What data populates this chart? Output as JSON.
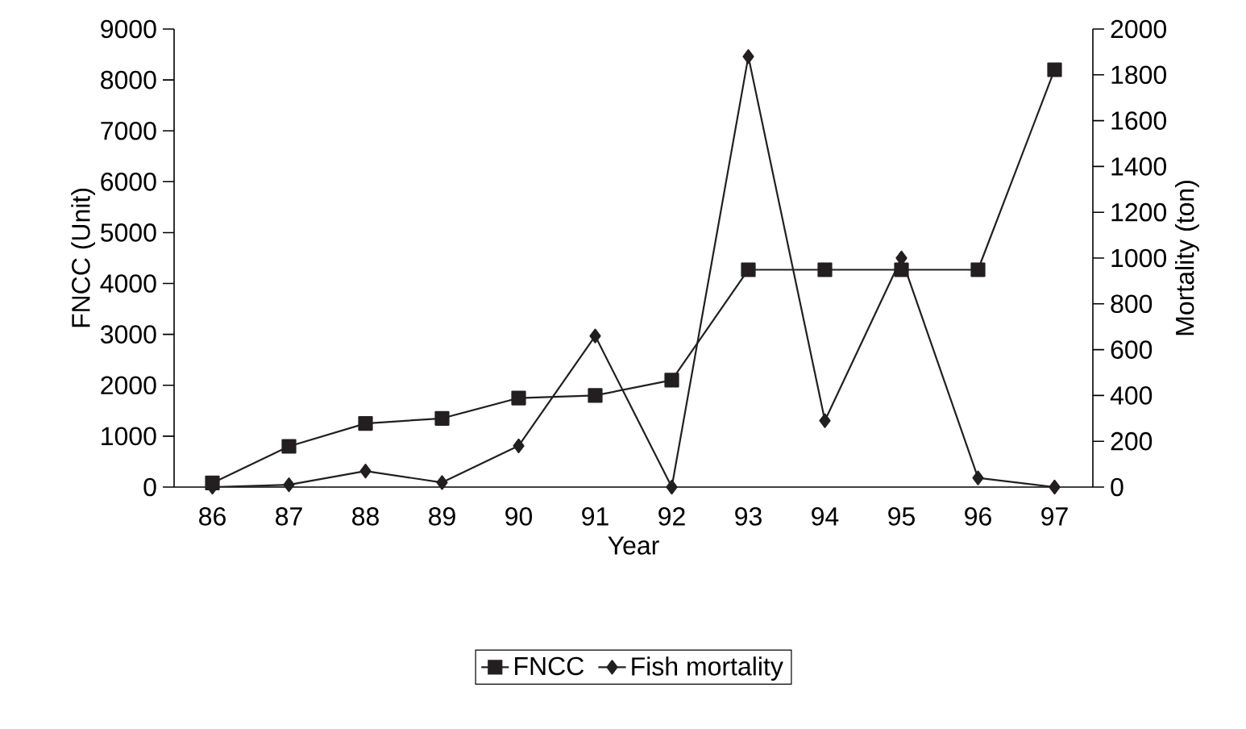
{
  "chart_data": {
    "type": "line",
    "xlabel": "Year",
    "ylabel": "FNCC (Unit)",
    "y2label": "Mortality (ton)",
    "categories": [
      "86",
      "87",
      "88",
      "89",
      "90",
      "91",
      "92",
      "93",
      "94",
      "95",
      "96",
      "97"
    ],
    "ylim": [
      0,
      9000
    ],
    "yticks": [
      0,
      1000,
      2000,
      3000,
      4000,
      5000,
      6000,
      7000,
      8000,
      9000
    ],
    "y2lim": [
      0,
      2000
    ],
    "y2ticks": [
      0,
      200,
      400,
      600,
      800,
      1000,
      1200,
      1400,
      1600,
      1800,
      2000
    ],
    "legend": "bottom",
    "line_style": "solid",
    "series": [
      {
        "name": "FNCC",
        "color": "#231f20",
        "marker": "square",
        "values": [
          80,
          800,
          1250,
          1350,
          1750,
          1800,
          2100,
          4270,
          4270,
          4270,
          4270,
          8200
        ]
      },
      {
        "name": "Fish mortality",
        "color": "#231f20",
        "marker": "diamond",
        "axis": "y2",
        "values": [
          0,
          10,
          70,
          20,
          180,
          660,
          0,
          1880,
          290,
          1000,
          40,
          0
        ]
      }
    ]
  }
}
